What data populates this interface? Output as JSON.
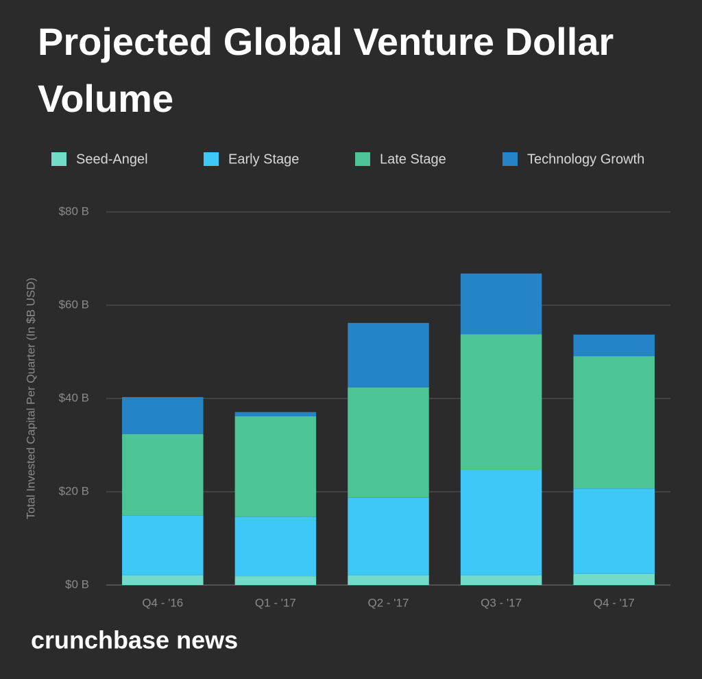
{
  "chart_data": {
    "type": "stacked_bar",
    "title": "Projected Global Venture Dollar Volume",
    "ylabel": "Total Invested Capital Per Quarter (In $B USD)",
    "brand": "crunchbase news",
    "categories": [
      "Q4 - '16",
      "Q1 - '17",
      "Q2 - '17",
      "Q3 - '17",
      "Q4 - '17"
    ],
    "series": [
      {
        "name": "Seed-Angel",
        "color": "#72dcc8",
        "values": [
          2.1,
          1.9,
          2.1,
          2.1,
          2.4
        ]
      },
      {
        "name": "Early Stage",
        "color": "#3ec8f7",
        "values": [
          12.8,
          12.7,
          16.6,
          22.6,
          18.3
        ]
      },
      {
        "name": "Late Stage",
        "color": "#4cc495",
        "values": [
          17.5,
          21.6,
          23.7,
          29.1,
          28.4
        ]
      },
      {
        "name": "Technology Growth",
        "color": "#2484c6",
        "values": [
          7.9,
          0.9,
          13.8,
          13.0,
          4.6
        ]
      }
    ],
    "ylim": [
      0,
      80
    ],
    "yticks": [
      {
        "value": 0,
        "label": "$0 B"
      },
      {
        "value": 20,
        "label": "$20 B"
      },
      {
        "value": 40,
        "label": "$40 B"
      },
      {
        "value": 60,
        "label": "$60 B"
      },
      {
        "value": 80,
        "label": "$80 B"
      }
    ],
    "grid": true,
    "legend": "top"
  }
}
